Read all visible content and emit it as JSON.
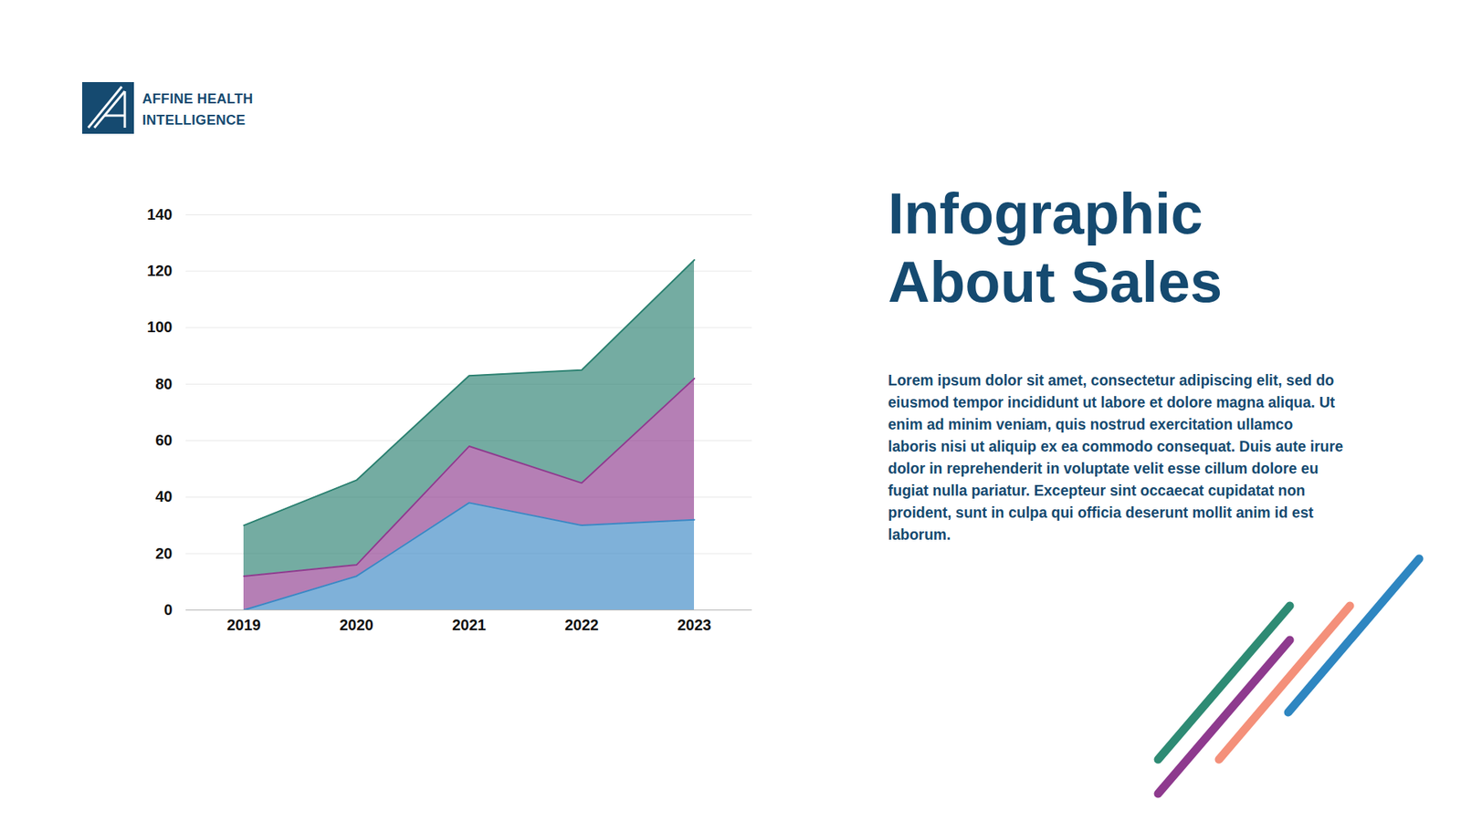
{
  "page": {
    "logo_text": [
      "AFFINE HEALTH",
      "INTELLIGENCE"
    ],
    "title": "Infographic About Sales",
    "body": "Lorem ipsum dolor sit amet, consectetur adipiscing elit, sed do eiusmod tempor incididunt ut labore et dolore magna aliqua. Ut enim ad minim veniam, quis nostrud exercitation ullamco laboris nisi ut aliquip ex ea commodo consequat. Duis aute irure dolor in reprehenderit in voluptate velit esse cillum dolore eu fugiat nulla pariatur. Excepteur sint occaecat cupidatat non proident, sunt in culpa qui officia deserunt mollit anim id est laborum."
  },
  "chart_data": {
    "type": "area",
    "stacked": true,
    "grid": true,
    "categories": [
      "2019",
      "2020",
      "2021",
      "2022",
      "2023"
    ],
    "series": [
      {
        "color": "#3a87c4",
        "values": [
          0,
          12,
          38,
          30,
          32
        ]
      },
      {
        "color": "#8e3a8e",
        "values": [
          12,
          4,
          20,
          15,
          50
        ]
      },
      {
        "color": "#2a8070",
        "values": [
          18,
          30,
          25,
          40,
          42
        ]
      }
    ],
    "ylim": [
      0,
      140
    ],
    "yticks": [
      0,
      20,
      40,
      60,
      80,
      100,
      120,
      140
    ]
  }
}
